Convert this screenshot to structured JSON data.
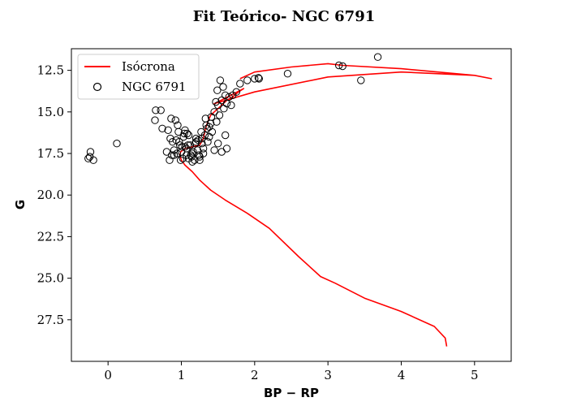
{
  "chart_data": {
    "type": "scatter",
    "title": "Fit Teórico- NGC 6791",
    "xlabel": "BP − RP",
    "ylabel": "G",
    "xlim": [
      -0.5,
      5.5
    ],
    "ylim": [
      30,
      11.2
    ],
    "y_inverted": true,
    "grid": false,
    "legend_position": "top-left",
    "x_ticks": [
      0,
      1,
      2,
      3,
      4,
      5
    ],
    "y_ticks": [
      12.5,
      15.0,
      17.5,
      20.0,
      22.5,
      25.0,
      27.5
    ],
    "legend": [
      {
        "label": "Isócrona",
        "kind": "line"
      },
      {
        "label": "NGC 6791",
        "kind": "marker"
      }
    ],
    "series": [
      {
        "name": "Isócrona",
        "kind": "line",
        "color": "#ff0000",
        "x": [
          4.62,
          4.6,
          4.45,
          4.0,
          3.5,
          3.1,
          2.9,
          2.6,
          2.2,
          1.9,
          1.6,
          1.4,
          1.25,
          1.15,
          1.05,
          1.0,
          0.98,
          0.99,
          1.05,
          1.15,
          1.25,
          1.3,
          1.33,
          1.36,
          1.4,
          1.45,
          1.5,
          1.55,
          1.62,
          1.7,
          1.78,
          1.85,
          1.5,
          1.45,
          2.0,
          3.0,
          4.0,
          5.0,
          5.23,
          5.0,
          4.0,
          3.2,
          3.0,
          2.5,
          2.0,
          1.8
        ],
        "y": [
          29.1,
          28.6,
          27.9,
          27.0,
          26.2,
          25.3,
          24.9,
          23.7,
          22.0,
          21.1,
          20.3,
          19.7,
          19.1,
          18.6,
          18.2,
          17.9,
          17.6,
          17.4,
          17.2,
          17.1,
          17.0,
          16.6,
          16.0,
          15.6,
          15.2,
          15.0,
          14.8,
          14.6,
          14.3,
          14.1,
          13.8,
          13.6,
          14.4,
          14.5,
          13.8,
          12.9,
          12.6,
          12.8,
          13.0,
          12.8,
          12.4,
          12.2,
          12.1,
          12.3,
          12.6,
          13.0
        ]
      },
      {
        "name": "NGC 6791",
        "kind": "scatter",
        "marker": "open-circle",
        "color": "#000000",
        "x": [
          -0.27,
          -0.24,
          -0.25,
          -0.2,
          0.12,
          0.65,
          0.64,
          0.72,
          0.74,
          0.82,
          0.86,
          0.85,
          0.88,
          0.9,
          0.87,
          0.92,
          0.95,
          0.96,
          0.93,
          0.98,
          1.0,
          1.02,
          1.04,
          1.05,
          1.07,
          1.1,
          1.12,
          1.15,
          1.18,
          1.2,
          1.22,
          1.25,
          1.28,
          1.3,
          1.35,
          1.38,
          1.4,
          1.42,
          1.45,
          1.48,
          1.5,
          1.52,
          1.55,
          1.58,
          1.6,
          1.62,
          1.65,
          1.68,
          1.7,
          1.75,
          1.8,
          1.9,
          2.0,
          2.05,
          2.06,
          2.45,
          3.15,
          3.2,
          3.45,
          3.68,
          1.53,
          1.49,
          1.57,
          1.6,
          1.62,
          1.36,
          1.2,
          1.08,
          0.99,
          0.8,
          0.84,
          0.9,
          1.15,
          1.25,
          1.3,
          1.45,
          1.5,
          1.55,
          1.34,
          1.27,
          1.33,
          1.41,
          1.47,
          0.97,
          1.01,
          1.09,
          1.14,
          1.19,
          1.23,
          1.1,
          1.13,
          1.07,
          1.03,
          0.94,
          1.05,
          1.16,
          1.28,
          1.24,
          1.32,
          1.38
        ],
        "y": [
          17.8,
          17.4,
          17.7,
          17.9,
          16.9,
          14.9,
          15.5,
          14.9,
          16.0,
          16.1,
          15.4,
          16.6,
          16.8,
          17.3,
          17.6,
          15.5,
          15.8,
          16.2,
          16.7,
          17.0,
          17.4,
          17.8,
          16.3,
          17.1,
          17.6,
          16.4,
          17.0,
          17.5,
          17.9,
          16.8,
          17.3,
          17.7,
          16.6,
          17.2,
          16.0,
          16.5,
          15.7,
          16.2,
          15.0,
          15.6,
          14.6,
          15.2,
          14.3,
          14.8,
          14.0,
          14.5,
          14.1,
          14.6,
          14.0,
          13.8,
          13.3,
          13.1,
          13.0,
          12.95,
          13.0,
          12.7,
          12.2,
          12.25,
          13.1,
          11.7,
          13.1,
          13.7,
          13.5,
          16.4,
          17.2,
          16.8,
          16.6,
          16.3,
          17.9,
          17.4,
          17.9,
          17.6,
          18.0,
          17.9,
          17.5,
          17.3,
          16.9,
          17.4,
          15.8,
          16.2,
          15.4,
          15.3,
          14.4,
          16.8,
          17.1,
          17.0,
          17.7,
          16.9,
          16.7,
          17.8,
          17.6,
          17.2,
          16.5,
          17.5,
          16.1,
          17.4,
          16.9,
          17.6,
          16.4,
          15.9
        ]
      }
    ]
  }
}
